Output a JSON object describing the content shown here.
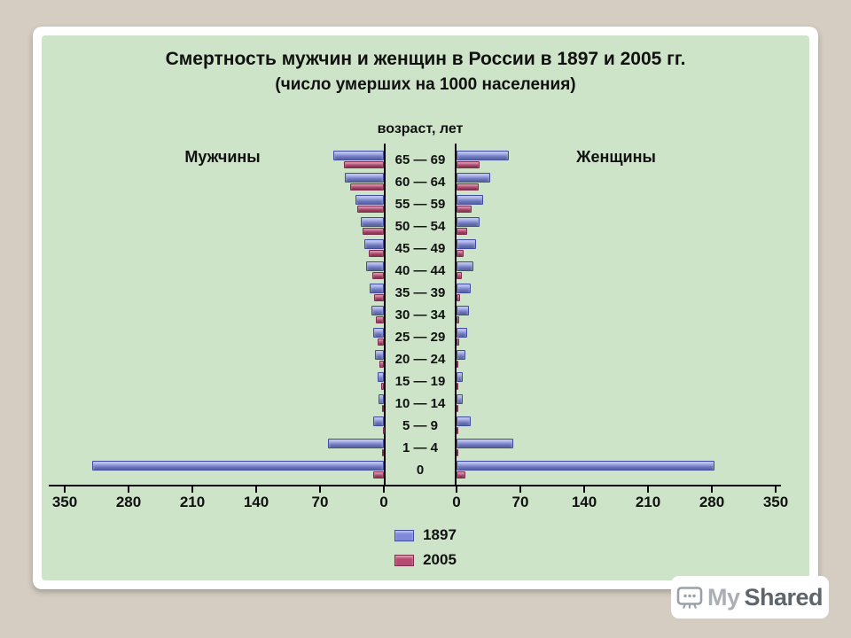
{
  "page": {
    "background_color": "#d5cdc1",
    "slide_color": "#ffffff",
    "chart_background": "#cde4c8"
  },
  "chart_data": {
    "type": "bar",
    "variant": "population-pyramid",
    "title": "Смертность мужчин и женщин в России в 1897 и 2005 гг.",
    "subtitle": "(число умерших на 1000 населения)",
    "center_axis_label": "возраст, лет",
    "left_group_label": "Мужчины",
    "right_group_label": "Женщины",
    "xlim": [
      0,
      350
    ],
    "grid": false,
    "legend_position": "bottom-center",
    "axis_ticks_left": [
      350,
      280,
      210,
      140,
      70,
      0
    ],
    "axis_ticks_right": [
      0,
      70,
      140,
      210,
      280,
      350
    ],
    "age_groups": [
      "65 — 69",
      "60 — 64",
      "55 — 59",
      "50 — 54",
      "45 — 49",
      "40 — 44",
      "35 — 39",
      "30 — 34",
      "25 — 29",
      "20 — 24",
      "15 — 19",
      "10 — 14",
      "5 — 9",
      "1 — 4",
      "0"
    ],
    "series": [
      {
        "name": "1897",
        "color": "#7e89d8",
        "border_color": "#3f4da5",
        "men": [
          55,
          43,
          31,
          25,
          21,
          19,
          16,
          14,
          12,
          10,
          7,
          6,
          12,
          61,
          320
        ],
        "women": [
          57,
          37,
          29,
          25,
          21,
          18,
          16,
          14,
          12,
          10,
          7,
          7,
          16,
          62,
          283
        ]
      },
      {
        "name": "2005",
        "color": "#b84a72",
        "border_color": "#7e2c4d",
        "men": [
          44,
          37,
          29,
          23,
          17,
          13,
          11,
          9,
          7,
          5,
          3,
          2,
          1,
          2,
          12
        ],
        "women": [
          25,
          24,
          17,
          12,
          8,
          6,
          4,
          3,
          3,
          2,
          2,
          1,
          1,
          2,
          10
        ]
      }
    ],
    "legend": [
      "1897",
      "2005"
    ]
  },
  "watermark": {
    "prefix": "My",
    "suffix": "Shared"
  }
}
